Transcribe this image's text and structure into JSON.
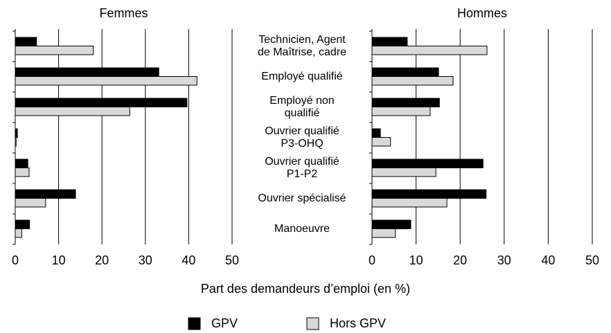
{
  "chart_data": {
    "type": "bar",
    "orientation": "horizontal",
    "categories": [
      "Technicien, Agent\nde Maîtrise, cadre",
      "Employé qualifié",
      "Employé non\nqualifié",
      "Ouvrier qualifié\nP3-OHQ",
      "Ouvrier qualifié\nP1-P2",
      "Ouvrier spécialisé",
      "Manoeuvre"
    ],
    "xlabel": "Part des demandeurs d’emploi (en %)",
    "xlim": [
      0,
      50
    ],
    "xticks": [
      0,
      10,
      20,
      30,
      40,
      50
    ],
    "grid": true,
    "series": [
      {
        "name": "GPV",
        "color": "#000000"
      },
      {
        "name": "Hors GPV",
        "color": "#d9d9d9"
      }
    ],
    "panels": [
      {
        "title": "Femmes",
        "values": [
          [
            4.9,
            33.1,
            39.6,
            0.5,
            2.9,
            13.9,
            3.3
          ],
          [
            18,
            41.9,
            26.4,
            0.2,
            3.2,
            7,
            1.5
          ]
        ]
      },
      {
        "title": "Hommes",
        "values": [
          [
            8,
            15.1,
            15.3,
            1.9,
            25.2,
            25.9,
            8.8
          ],
          [
            26.1,
            18.4,
            13.2,
            4.2,
            14.5,
            17,
            5.3
          ]
        ]
      }
    ]
  }
}
